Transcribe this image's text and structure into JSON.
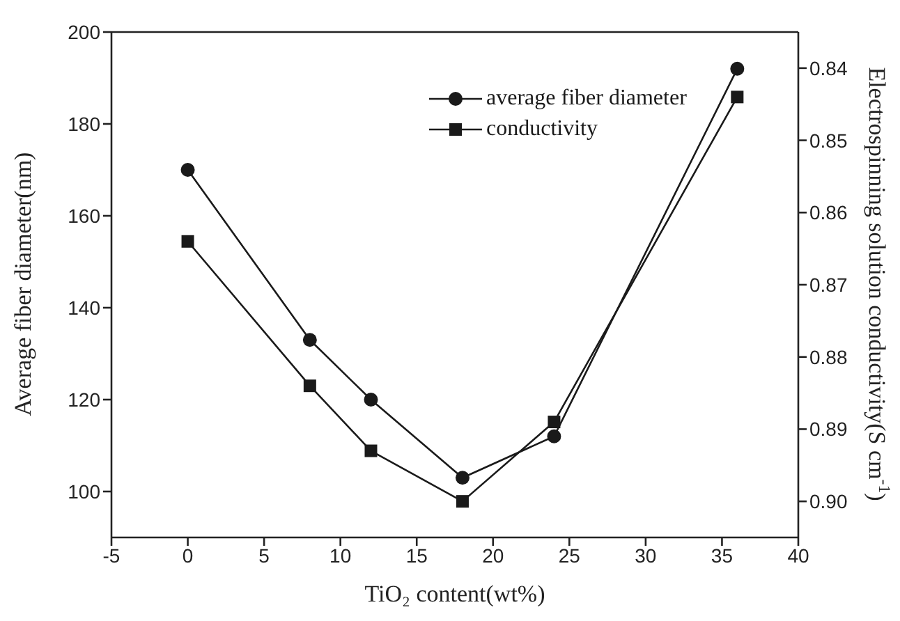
{
  "chart_data": {
    "type": "line",
    "xlabel": "TiO₂ content(wt%)",
    "ylabel": "Average fiber diameter(nm)",
    "y2label": "Electrospinning solution conductivity(S cm$^{-1}$)",
    "x": [
      0,
      8,
      12,
      18,
      24,
      36
    ],
    "series": [
      {
        "name": "average fiber diameter",
        "color": "#1a1a1a",
        "marker": "circle",
        "values": [
          170,
          133,
          120,
          103,
          112,
          192
        ]
      },
      {
        "name": "conductivity",
        "color": "#1a1a1a",
        "marker": "square",
        "axis": "y2",
        "values": [
          0.864,
          0.884,
          0.893,
          0.9,
          0.889,
          0.844
        ]
      }
    ],
    "xlim": [
      -5,
      40
    ],
    "xticks": [
      -5,
      0,
      5,
      10,
      15,
      20,
      25,
      30,
      35,
      40
    ],
    "ylim": [
      90,
      200
    ],
    "yticks": [
      100,
      120,
      140,
      160,
      180,
      200
    ],
    "y2lim": [
      0.905,
      0.835
    ],
    "y2ticks": [
      {
        "value": 0.84,
        "label": "0.84"
      },
      {
        "value": 0.85,
        "label": "0.85"
      },
      {
        "value": 0.86,
        "label": "0.86"
      },
      {
        "value": 0.87,
        "label": "0.87"
      },
      {
        "value": 0.88,
        "label": "0.88"
      },
      {
        "value": 0.89,
        "label": "0.89"
      },
      {
        "value": 0.9,
        "label": "0.90"
      }
    ],
    "grid": false,
    "legend": "top right",
    "line_style": "solid"
  }
}
